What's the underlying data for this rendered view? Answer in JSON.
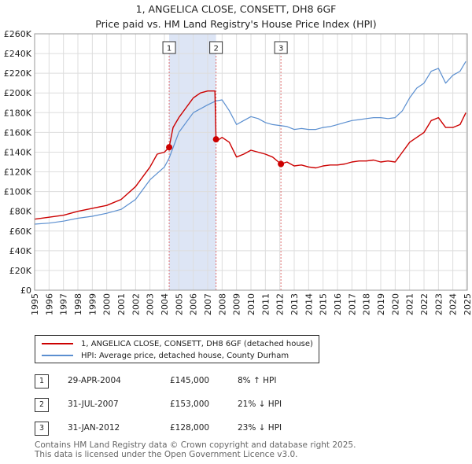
{
  "title_line1": "1, ANGELICA CLOSE, CONSETT, DH8 6GF",
  "title_line2": "Price paid vs. HM Land Registry's House Price Index (HPI)",
  "legend": {
    "property_label": "1, ANGELICA CLOSE, CONSETT, DH8 6GF (detached house)",
    "hpi_label": "HPI: Average price, detached house, County Durham"
  },
  "colors": {
    "property": "#cc0000",
    "hpi": "#5b8fd0",
    "shade": "#dde5f5",
    "grid": "#dddddd",
    "marker_line": "#e07070"
  },
  "transactions": [
    {
      "num": "1",
      "date": "29-APR-2004",
      "price": "£145,000",
      "hpi_diff": "8% ↑ HPI"
    },
    {
      "num": "2",
      "date": "31-JUL-2007",
      "price": "£153,000",
      "hpi_diff": "21% ↓ HPI"
    },
    {
      "num": "3",
      "date": "31-JAN-2012",
      "price": "£128,000",
      "hpi_diff": "23% ↓ HPI"
    }
  ],
  "footer_line1": "Contains HM Land Registry data © Crown copyright and database right 2025.",
  "footer_line2": "This data is licensed under the Open Government Licence v3.0.",
  "chart_data": {
    "type": "line",
    "title": "1, ANGELICA CLOSE, CONSETT, DH8 6GF — Price paid vs. HM Land Registry's House Price Index (HPI)",
    "xlabel": "",
    "ylabel": "",
    "xlim": [
      1995,
      2025
    ],
    "ylim": [
      0,
      260000
    ],
    "y_ticks": [
      0,
      20000,
      40000,
      60000,
      80000,
      100000,
      120000,
      140000,
      160000,
      180000,
      200000,
      220000,
      240000,
      260000
    ],
    "y_tick_labels": [
      "£0",
      "£20K",
      "£40K",
      "£60K",
      "£80K",
      "£100K",
      "£120K",
      "£140K",
      "£160K",
      "£180K",
      "£200K",
      "£220K",
      "£240K",
      "£260K"
    ],
    "x_ticks": [
      1995,
      1996,
      1997,
      1998,
      1999,
      2000,
      2001,
      2002,
      2003,
      2004,
      2005,
      2006,
      2007,
      2008,
      2009,
      2010,
      2011,
      2012,
      2013,
      2014,
      2015,
      2016,
      2017,
      2018,
      2019,
      2020,
      2021,
      2022,
      2023,
      2024,
      2025
    ],
    "x_tick_labels": [
      "1995",
      "1996",
      "1997",
      "1998",
      "1999",
      "2000",
      "2001",
      "2002",
      "2003",
      "2004",
      "2005",
      "2006",
      "2007",
      "2008",
      "2009",
      "2010",
      "2011",
      "2012",
      "2013",
      "2014",
      "2015",
      "2016",
      "2017",
      "2018",
      "2019",
      "2020",
      "2021",
      "2022",
      "2023",
      "2024",
      "2025"
    ],
    "grid": true,
    "shaded_periods": [
      [
        2004.33,
        2007.58
      ]
    ],
    "sale_markers": [
      {
        "label": "1",
        "x": 2004.33,
        "y": 145000
      },
      {
        "label": "2",
        "x": 2007.58,
        "y": 153000
      },
      {
        "label": "3",
        "x": 2012.08,
        "y": 128000
      }
    ],
    "series": [
      {
        "name": "1, ANGELICA CLOSE, CONSETT, DH8 6GF (detached house)",
        "x": [
          1995,
          1996,
          1997,
          1998,
          1999,
          2000,
          2001,
          2002,
          2003,
          2003.5,
          2004.0,
          2004.33,
          2004.6,
          2005.0,
          2005.5,
          2006.0,
          2006.5,
          2007.0,
          2007.5,
          2007.58,
          2007.7,
          2008.0,
          2008.5,
          2009.0,
          2009.5,
          2010.0,
          2010.5,
          2011.0,
          2011.5,
          2012.08,
          2012.5,
          2013.0,
          2013.5,
          2014.0,
          2014.5,
          2015.0,
          2015.5,
          2016.0,
          2016.5,
          2017.0,
          2017.5,
          2018.0,
          2018.5,
          2019.0,
          2019.5,
          2020.0,
          2020.5,
          2021.0,
          2021.5,
          2022.0,
          2022.5,
          2023.0,
          2023.5,
          2024.0,
          2024.5,
          2024.9
        ],
        "values": [
          72000,
          74000,
          76000,
          80000,
          83000,
          86000,
          92000,
          105000,
          125000,
          138000,
          140000,
          145000,
          165000,
          175000,
          185000,
          195000,
          200000,
          202000,
          202000,
          153000,
          152000,
          155000,
          150000,
          135000,
          138000,
          142000,
          140000,
          138000,
          135000,
          128000,
          130000,
          126000,
          127000,
          125000,
          124000,
          126000,
          127000,
          127000,
          128000,
          130000,
          131000,
          131000,
          132000,
          130000,
          131000,
          130000,
          140000,
          150000,
          155000,
          160000,
          172000,
          175000,
          165000,
          165000,
          168000,
          180000
        ]
      },
      {
        "name": "HPI: Average price, detached house, County Durham",
        "x": [
          1995,
          1996,
          1997,
          1998,
          1999,
          2000,
          2001,
          2002,
          2003,
          2004.0,
          2004.33,
          2005.0,
          2006.0,
          2007.0,
          2007.58,
          2008.0,
          2008.5,
          2009.0,
          2009.5,
          2010.0,
          2010.5,
          2011.0,
          2011.5,
          2012.0,
          2012.5,
          2013.0,
          2013.5,
          2014.0,
          2014.5,
          2015.0,
          2015.5,
          2016.0,
          2016.5,
          2017.0,
          2017.5,
          2018.0,
          2018.5,
          2019.0,
          2019.5,
          2020.0,
          2020.5,
          2021.0,
          2021.5,
          2022.0,
          2022.5,
          2023.0,
          2023.5,
          2024.0,
          2024.5,
          2024.9
        ],
        "values": [
          67000,
          68000,
          70000,
          73000,
          75000,
          78000,
          82000,
          92000,
          112000,
          125000,
          134000,
          160000,
          180000,
          188000,
          192000,
          193000,
          182000,
          168000,
          172000,
          176000,
          174000,
          170000,
          168000,
          167000,
          166000,
          163000,
          164000,
          163000,
          163000,
          165000,
          166000,
          168000,
          170000,
          172000,
          173000,
          174000,
          175000,
          175000,
          174000,
          175000,
          182000,
          195000,
          205000,
          210000,
          222000,
          225000,
          210000,
          218000,
          222000,
          232000
        ]
      }
    ]
  }
}
